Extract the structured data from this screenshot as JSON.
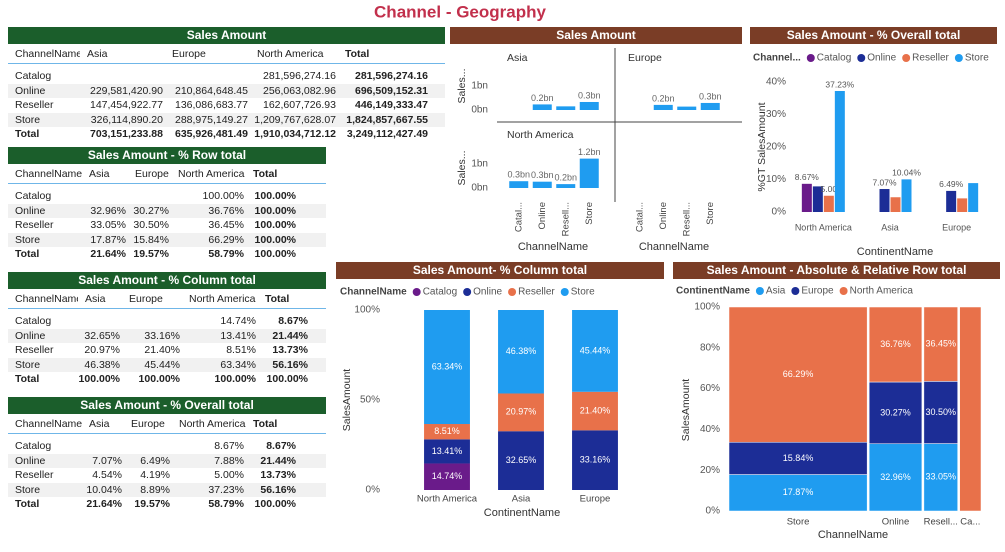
{
  "title": "Channel - Geography",
  "tables": [
    {
      "title": "Sales Amount",
      "columns": [
        "ChannelName",
        "Asia",
        "Europe",
        "North America",
        "Total"
      ],
      "rows": [
        [
          "Catalog",
          null,
          null,
          "281,596,274.16",
          "281,596,274.16"
        ],
        [
          "Online",
          "229,581,420.90",
          "210,864,648.45",
          "256,063,082.96",
          "696,509,152.31"
        ],
        [
          "Reseller",
          "147,454,922.77",
          "136,086,683.77",
          "162,607,726.93",
          "446,149,333.47"
        ],
        [
          "Store",
          "326,114,890.20",
          "288,975,149.27",
          "1,209,767,628.07",
          "1,824,857,667.55"
        ],
        [
          "Total",
          "703,151,233.88",
          "635,926,481.49",
          "1,910,034,712.12",
          "3,249,112,427.49"
        ]
      ]
    },
    {
      "title": "Sales Amount - % Row total",
      "columns": [
        "ChannelName",
        "Asia",
        "Europe",
        "North America",
        "Total"
      ],
      "rows": [
        [
          "Catalog",
          null,
          null,
          "100.00%",
          "100.00%"
        ],
        [
          "Online",
          "32.96%",
          "30.27%",
          "36.76%",
          "100.00%"
        ],
        [
          "Reseller",
          "33.05%",
          "30.50%",
          "36.45%",
          "100.00%"
        ],
        [
          "Store",
          "17.87%",
          "15.84%",
          "66.29%",
          "100.00%"
        ],
        [
          "Total",
          "21.64%",
          "19.57%",
          "58.79%",
          "100.00%"
        ]
      ]
    },
    {
      "title": "Sales Amount - % Column total",
      "columns": [
        "ChannelName",
        "Asia",
        "Europe",
        "North America",
        "Total"
      ],
      "rows": [
        [
          "Catalog",
          null,
          null,
          "14.74%",
          "8.67%"
        ],
        [
          "Online",
          "32.65%",
          "33.16%",
          "13.41%",
          "21.44%"
        ],
        [
          "Reseller",
          "20.97%",
          "21.40%",
          "8.51%",
          "13.73%"
        ],
        [
          "Store",
          "46.38%",
          "45.44%",
          "63.34%",
          "56.16%"
        ],
        [
          "Total",
          "100.00%",
          "100.00%",
          "100.00%",
          "100.00%"
        ]
      ]
    },
    {
      "title": "Sales Amount - % Overall total",
      "columns": [
        "ChannelName",
        "Asia",
        "Europe",
        "North America",
        "Total"
      ],
      "rows": [
        [
          "Catalog",
          null,
          null,
          "8.67%",
          "8.67%"
        ],
        [
          "Online",
          "7.07%",
          "6.49%",
          "7.88%",
          "21.44%"
        ],
        [
          "Reseller",
          "4.54%",
          "4.19%",
          "5.00%",
          "13.73%"
        ],
        [
          "Store",
          "10.04%",
          "8.89%",
          "37.23%",
          "56.16%"
        ],
        [
          "Total",
          "21.64%",
          "19.57%",
          "58.79%",
          "100.00%"
        ]
      ]
    }
  ],
  "chart_data": [
    {
      "type": "multiples",
      "title": "Sales Amount",
      "y_label": "Sales...",
      "x_label": "ChannelName",
      "color": "#1f9cf0",
      "categories": [
        "Catal...",
        "Online",
        "Resell...",
        "Store"
      ],
      "ylim": [
        0,
        1.4
      ],
      "yticks": [
        {
          "value": 0,
          "label": "0bn"
        },
        {
          "value": 1,
          "label": "1bn"
        }
      ],
      "series": [
        {
          "name": "Asia",
          "values": [
            null,
            0.23,
            0.15,
            0.33
          ],
          "value_labels": [
            null,
            "0.2bn",
            null,
            "0.3bn"
          ]
        },
        {
          "name": "Europe",
          "values": [
            null,
            0.21,
            0.14,
            0.29
          ],
          "value_labels": [
            null,
            "0.2bn",
            null,
            "0.3bn"
          ]
        },
        {
          "name": "North America",
          "values": [
            0.28,
            0.26,
            0.16,
            1.21
          ],
          "value_labels": [
            "0.3bn",
            "0.3bn",
            "0.2bn",
            "1.2bn"
          ]
        }
      ]
    },
    {
      "type": "bar",
      "title": "Sales Amount - % Overall total",
      "legend_title": "Channel...",
      "y_label": "%GT SalesAmount",
      "x_label": "ContinentName",
      "categories": [
        "North America",
        "Asia",
        "Europe"
      ],
      "ylim": [
        0,
        40
      ],
      "yticks": [
        {
          "value": 0,
          "label": "0%"
        },
        {
          "value": 10,
          "label": "10%"
        },
        {
          "value": 20,
          "label": "20%"
        },
        {
          "value": 30,
          "label": "30%"
        },
        {
          "value": 40,
          "label": "40%"
        }
      ],
      "series": [
        {
          "name": "Catalog",
          "color": "#6a1b8a",
          "values": [
            8.67,
            null,
            null
          ],
          "value_labels": [
            "8.67%",
            null,
            null
          ]
        },
        {
          "name": "Online",
          "color": "#1c2d96",
          "values": [
            7.88,
            7.07,
            6.49
          ],
          "value_labels": [
            null,
            "7.07%",
            "6.49%"
          ]
        },
        {
          "name": "Reseller",
          "color": "#e8714a",
          "values": [
            5.0,
            4.54,
            4.19
          ],
          "value_labels": [
            "5.00",
            null,
            null
          ]
        },
        {
          "name": "Store",
          "color": "#1f9cf0",
          "values": [
            37.23,
            10.04,
            8.89
          ],
          "value_labels": [
            "37.23%",
            "10.04%",
            null
          ]
        }
      ]
    },
    {
      "type": "stacked100",
      "title": "Sales Amount- % Column total",
      "legend_title": "ChannelName",
      "y_label": "SalesAmount",
      "x_label": "ContinentName",
      "categories": [
        "North America",
        "Asia",
        "Europe"
      ],
      "ylim": [
        0,
        100
      ],
      "yticks": [
        {
          "value": 0,
          "label": "0%"
        },
        {
          "value": 50,
          "label": "50%"
        },
        {
          "value": 100,
          "label": "100%"
        }
      ],
      "series": [
        {
          "name": "Catalog",
          "color": "#6a1b8a",
          "values": [
            14.74,
            null,
            null
          ],
          "value_labels": [
            "14.74%",
            null,
            null
          ]
        },
        {
          "name": "Online",
          "color": "#1c2d96",
          "values": [
            13.41,
            32.65,
            33.16
          ],
          "value_labels": [
            "13.41%",
            "32.65%",
            "33.16%"
          ]
        },
        {
          "name": "Reseller",
          "color": "#e8714a",
          "values": [
            8.51,
            20.97,
            21.4
          ],
          "value_labels": [
            "8.51%",
            "20.97%",
            "21.40%"
          ]
        },
        {
          "name": "Store",
          "color": "#1f9cf0",
          "values": [
            63.34,
            46.38,
            45.44
          ],
          "value_labels": [
            "63.34%",
            "46.38%",
            "45.44%"
          ]
        }
      ]
    },
    {
      "type": "mekko",
      "title": "Sales Amount - Absolute & Relative Row total",
      "legend_title": "ContinentName",
      "y_label": "SalesAmount",
      "x_label": "ChannelName",
      "categories": [
        "Store",
        "Online",
        "Resell...",
        "Ca..."
      ],
      "widths": [
        56.16,
        21.44,
        13.73,
        8.67
      ],
      "ylim": [
        0,
        100
      ],
      "yticks": [
        {
          "value": 0,
          "label": "0%"
        },
        {
          "value": 20,
          "label": "20%"
        },
        {
          "value": 40,
          "label": "40%"
        },
        {
          "value": 60,
          "label": "60%"
        },
        {
          "value": 80,
          "label": "80%"
        },
        {
          "value": 100,
          "label": "100%"
        }
      ],
      "series": [
        {
          "name": "Asia",
          "color": "#1f9cf0",
          "values": [
            17.87,
            32.96,
            33.05,
            null
          ],
          "value_labels": [
            "17.87%",
            "32.96%",
            "33.05%",
            null
          ]
        },
        {
          "name": "Europe",
          "color": "#1c2d96",
          "values": [
            15.84,
            30.27,
            30.5,
            null
          ],
          "value_labels": [
            "15.84%",
            "30.27%",
            "30.50%",
            null
          ]
        },
        {
          "name": "North America",
          "color": "#e8714a",
          "values": [
            66.29,
            36.76,
            36.45,
            100
          ],
          "value_labels": [
            "66.29%",
            "36.76%",
            "36.45%",
            null
          ]
        }
      ]
    }
  ]
}
